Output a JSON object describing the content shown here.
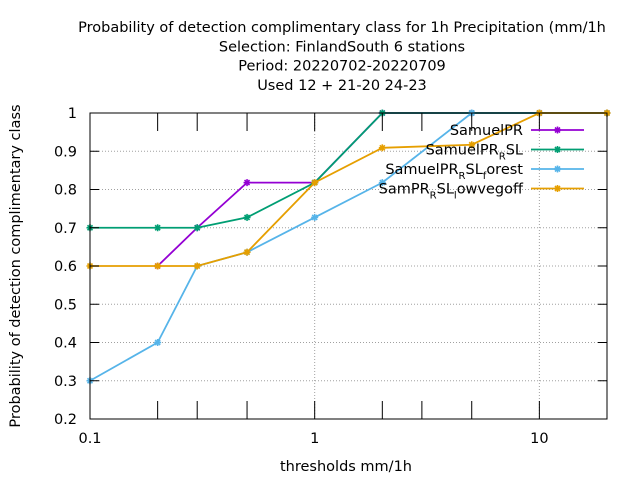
{
  "chart_data": {
    "type": "line",
    "title_lines": [
      "Probability of detection complimentary class  for 1h Precipitation (mm/1h",
      "Selection: FinlandSouth      6 stations",
      "Period: 20220702-20220709",
      "Used  12 + 21-20 24-23"
    ],
    "xlabel": "thresholds mm/1h",
    "ylabel": "Probability of detection complimentary class",
    "x_scale": "log",
    "xlim": [
      0.1,
      20
    ],
    "ylim": [
      0.2,
      1.0
    ],
    "x_tick_labels": [
      {
        "value": 0.1,
        "label": "0.1"
      },
      {
        "value": 1,
        "label": "1"
      },
      {
        "value": 10,
        "label": "10"
      }
    ],
    "x_minor_ticks": [
      0.2,
      0.3,
      0.5,
      2,
      3,
      5,
      20
    ],
    "y_tick_labels": [
      {
        "value": 0.2,
        "label": "0.2"
      },
      {
        "value": 0.3,
        "label": "0.3"
      },
      {
        "value": 0.4,
        "label": "0.4"
      },
      {
        "value": 0.5,
        "label": "0.5"
      },
      {
        "value": 0.6,
        "label": "0.6"
      },
      {
        "value": 0.7,
        "label": "0.7"
      },
      {
        "value": 0.8,
        "label": "0.8"
      },
      {
        "value": 0.9,
        "label": "0.9"
      },
      {
        "value": 1.0,
        "label": "1"
      }
    ],
    "grid": true,
    "legend_position": "top-right",
    "series": [
      {
        "legend": {
          "base": "SamuelPR",
          "sub": "",
          "tail": ""
        },
        "color": "#9400d3",
        "points": [
          [
            0.2,
            0.6
          ],
          [
            0.3,
            0.7
          ],
          [
            0.5,
            0.818
          ],
          [
            1,
            0.818
          ],
          [
            2,
            1.0
          ],
          [
            5,
            1.0
          ],
          [
            10,
            1.0
          ],
          [
            20,
            1.0
          ]
        ]
      },
      {
        "legend": {
          "base": "SamuelPR",
          "sub": "R",
          "tail": "SL"
        },
        "color": "#009e73",
        "points": [
          [
            0.1,
            0.7
          ],
          [
            0.2,
            0.7
          ],
          [
            0.3,
            0.7
          ],
          [
            0.5,
            0.727
          ],
          [
            1,
            0.818
          ],
          [
            2,
            1.0
          ],
          [
            5,
            1.0
          ],
          [
            10,
            1.0
          ],
          [
            20,
            1.0
          ]
        ]
      },
      {
        "legend": {
          "base": "SamuelPR",
          "sub": "R",
          "tail": "SL",
          "sub2": "f",
          "tail2": "orest"
        },
        "color": "#56b4e9",
        "points": [
          [
            0.1,
            0.3
          ],
          [
            0.2,
            0.4
          ],
          [
            0.3,
            0.6
          ],
          [
            0.5,
            0.636
          ],
          [
            1,
            0.727
          ],
          [
            2,
            0.818
          ],
          [
            5,
            1.0
          ]
        ]
      },
      {
        "legend": {
          "base": "SamPR",
          "sub": "R",
          "tail": "SL",
          "sub2": "l",
          "tail2": "owvegoff"
        },
        "color": "#e69f00",
        "points": [
          [
            0.1,
            0.6
          ],
          [
            0.2,
            0.6
          ],
          [
            0.3,
            0.6
          ],
          [
            0.5,
            0.636
          ],
          [
            1,
            0.818
          ],
          [
            2,
            0.909
          ],
          [
            5,
            0.917
          ],
          [
            10,
            1.0
          ],
          [
            20,
            1.0
          ]
        ]
      }
    ]
  }
}
